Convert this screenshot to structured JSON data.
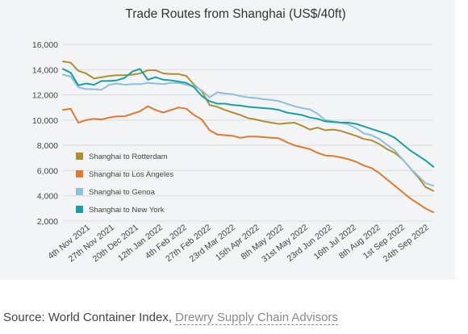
{
  "source": {
    "prefix": "Source: World Container Index, ",
    "link_text": "Drewry Supply Chain Advisors"
  },
  "chart_data": {
    "type": "line",
    "title": "Trade Routes from Shanghai (US$/40ft)",
    "xlabel": "",
    "ylabel": "",
    "ylim": [
      2000,
      16000
    ],
    "yticks": [
      2000,
      4000,
      6000,
      8000,
      10000,
      12000,
      14000,
      16000
    ],
    "ytick_labels": [
      "2,000",
      "4,000",
      "6,000",
      "8,000",
      "10,000",
      "12,000",
      "14,000",
      "16,000"
    ],
    "grid": "horizontal",
    "legend_position": "inside-bottom-left",
    "x_labels": [
      "4th Nov 2021",
      "27th Nov 2021",
      "20th Dec 2021",
      "12th Jan 2022",
      "4th Feb 2022",
      "27th Feb 2022",
      "23rd Mar 2022",
      "15th Apr 2022",
      "8th May 2022",
      "31st May 2022",
      "23rd Jun 2022",
      "16th Jul 2022",
      "8th Aug 2022",
      "1st Sep 2022",
      "24th Sep 2022"
    ],
    "x": [
      "2021-10-28",
      "2021-11-04",
      "2021-11-11",
      "2021-11-18",
      "2021-11-25",
      "2021-12-02",
      "2021-12-09",
      "2021-12-16",
      "2021-12-23",
      "2021-12-30",
      "2022-01-06",
      "2022-01-13",
      "2022-01-20",
      "2022-01-27",
      "2022-02-03",
      "2022-02-10",
      "2022-02-17",
      "2022-02-24",
      "2022-03-03",
      "2022-03-10",
      "2022-03-17",
      "2022-03-24",
      "2022-03-31",
      "2022-04-07",
      "2022-04-14",
      "2022-04-21",
      "2022-04-28",
      "2022-05-05",
      "2022-05-12",
      "2022-05-19",
      "2022-05-26",
      "2022-06-02",
      "2022-06-09",
      "2022-06-16",
      "2022-06-23",
      "2022-06-30",
      "2022-07-07",
      "2022-07-14",
      "2022-07-21",
      "2022-07-28",
      "2022-08-04",
      "2022-08-11",
      "2022-08-18",
      "2022-08-25",
      "2022-09-01",
      "2022-09-08",
      "2022-09-15",
      "2022-09-22",
      "2022-09-29"
    ],
    "series": [
      {
        "name": "Shanghai to Rotterdam",
        "color": "#b08d2f",
        "values": [
          14650,
          14550,
          13900,
          13700,
          13300,
          13400,
          13500,
          13550,
          13550,
          13600,
          13700,
          13950,
          13950,
          13700,
          13650,
          13650,
          13500,
          12800,
          12300,
          11200,
          11050,
          10800,
          10600,
          10400,
          10150,
          10050,
          9900,
          9800,
          9700,
          9750,
          9800,
          9550,
          9250,
          9400,
          9200,
          9250,
          9150,
          8950,
          8750,
          8500,
          8400,
          8100,
          7700,
          7400,
          6900,
          6200,
          5500,
          4700,
          4400
        ]
      },
      {
        "name": "Shanghai to Los Angeles",
        "color": "#e07a30",
        "values": [
          10800,
          10900,
          9800,
          10000,
          10100,
          10050,
          10200,
          10300,
          10300,
          10500,
          10700,
          11100,
          10800,
          10600,
          10800,
          11000,
          10900,
          10400,
          10050,
          9200,
          8850,
          8800,
          8750,
          8600,
          8700,
          8700,
          8650,
          8600,
          8550,
          8250,
          8000,
          7850,
          7700,
          7400,
          7200,
          7150,
          7050,
          6900,
          6700,
          6400,
          6200,
          5800,
          5300,
          4800,
          4300,
          3800,
          3400,
          3000,
          2700
        ]
      },
      {
        "name": "Shanghai to Genoa",
        "color": "#8fbfdb",
        "values": [
          13600,
          13450,
          12600,
          12450,
          12450,
          12400,
          12800,
          12900,
          12800,
          12850,
          12850,
          12950,
          12900,
          12850,
          12950,
          12950,
          12800,
          12700,
          12350,
          11800,
          12200,
          12100,
          12050,
          11900,
          11800,
          11750,
          11650,
          11600,
          11500,
          11300,
          11100,
          10950,
          10850,
          10500,
          10000,
          9900,
          9800,
          9650,
          9350,
          8950,
          8800,
          8500,
          8050,
          7600,
          6900,
          6200,
          5600,
          5000,
          4800
        ]
      },
      {
        "name": "Shanghai to New York",
        "color": "#17a0a3",
        "values": [
          14050,
          13750,
          12750,
          12900,
          12800,
          13100,
          13100,
          13150,
          13350,
          13850,
          14050,
          13200,
          13400,
          13200,
          13150,
          13050,
          12950,
          12600,
          11900,
          11500,
          11300,
          11300,
          11200,
          11150,
          11050,
          11000,
          10950,
          10900,
          10800,
          10600,
          10500,
          10400,
          10200,
          10100,
          9900,
          9850,
          9800,
          9800,
          9700,
          9500,
          9300,
          9100,
          8900,
          8600,
          8100,
          7600,
          7200,
          6800,
          6300
        ]
      }
    ]
  }
}
